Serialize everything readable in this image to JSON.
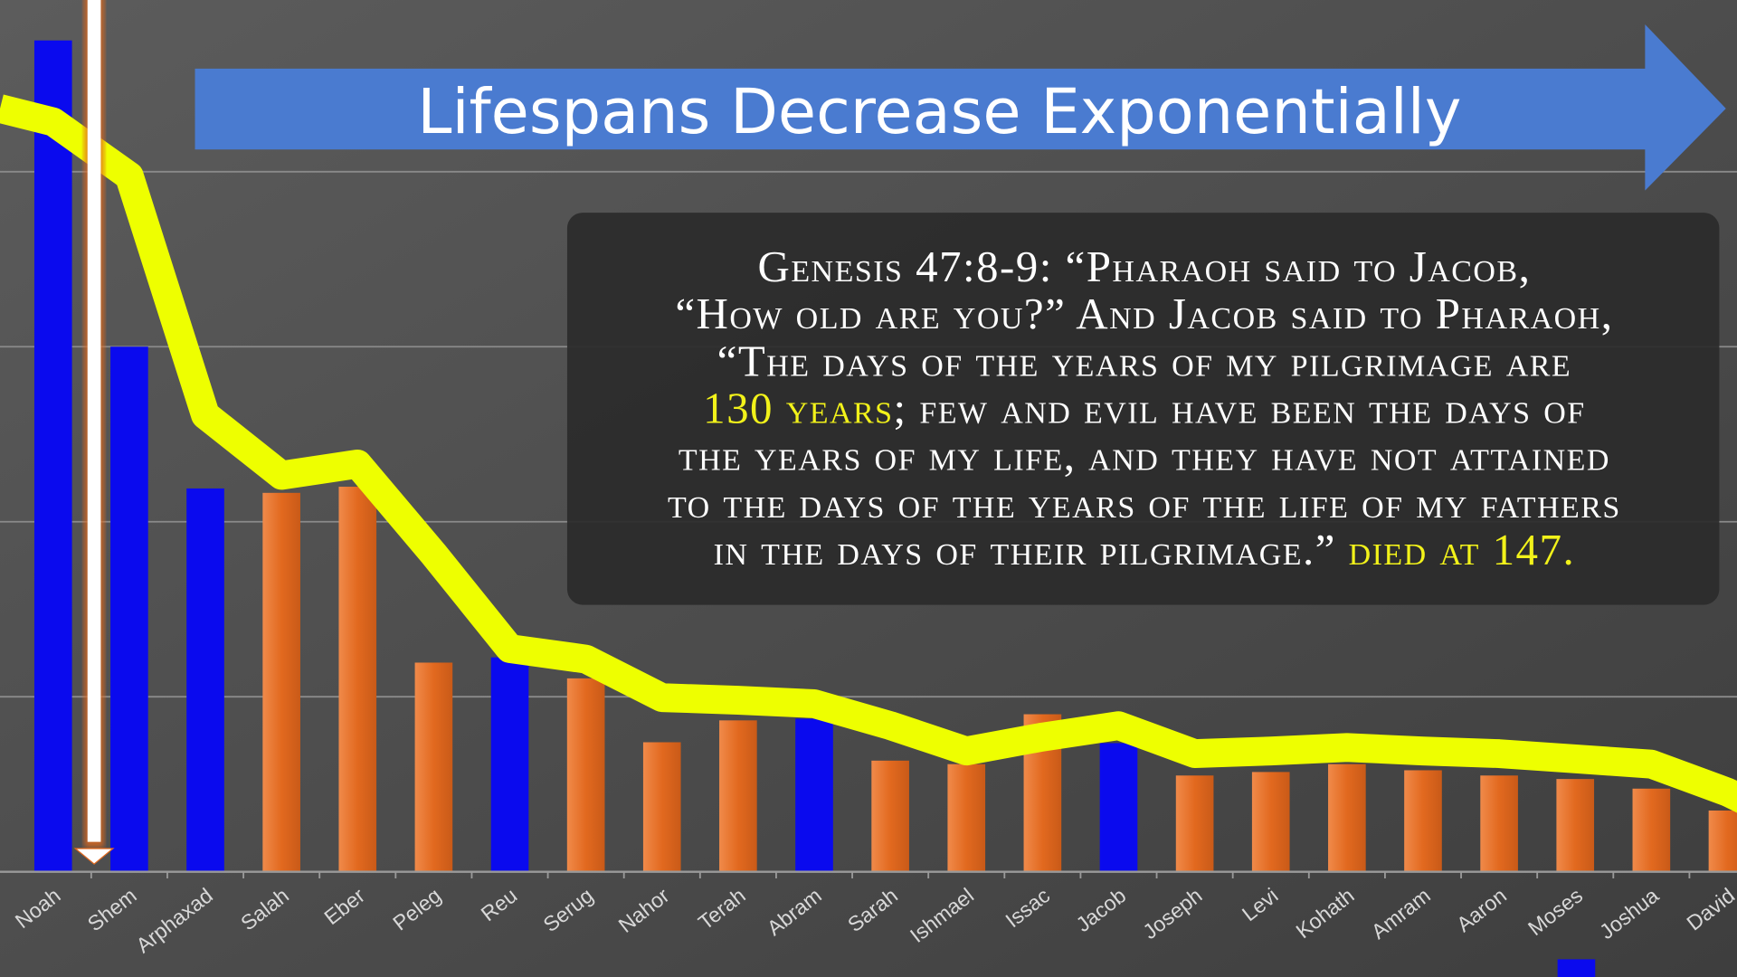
{
  "banner": {
    "title": "Lifespans Decrease Exponentially",
    "color": "#4a7bd0"
  },
  "passage": {
    "lines": [
      [
        {
          "text": "Genesis 47:8-9: “Pharaoh said to Jacob,",
          "highlight": false
        }
      ],
      [
        {
          "text": "“How old are you?” And Jacob said to Pharaoh,",
          "highlight": false
        }
      ],
      [
        {
          "text": "“The days of the years of my pilgrimage are",
          "highlight": false
        }
      ],
      [
        {
          "text": "130 years",
          "highlight": true
        },
        {
          "text": "; few and evil have been the days of",
          "highlight": false
        }
      ],
      [
        {
          "text": "the years of my life, and they have not attained",
          "highlight": false
        }
      ],
      [
        {
          "text": "to the days of the years of the life of my fathers",
          "highlight": false
        }
      ],
      [
        {
          "text": "in the days of their pilgrimage.” ",
          "highlight": false
        },
        {
          "text": "died at 147.",
          "highlight": true
        }
      ]
    ],
    "highlight_color": "#f2f21a"
  },
  "chart_data": {
    "type": "bar",
    "title": "",
    "xlabel": "",
    "ylabel": "",
    "ylim": [
      0,
      1000
    ],
    "grid": true,
    "gridline_step": 200,
    "categories": [
      "Noah",
      "Shem",
      "Arphaxad",
      "Salah",
      "Eber",
      "Peleg",
      "Reu",
      "Serug",
      "Nahor",
      "Terah",
      "Abram",
      "Sarah",
      "Ishmael",
      "Issac",
      "Jacob",
      "Joseph",
      "Levi",
      "Kohath",
      "Amram",
      "Aaron",
      "Moses",
      "Joshua",
      "David"
    ],
    "values": [
      950,
      600,
      438,
      433,
      440,
      239,
      245,
      221,
      148,
      173,
      175,
      127,
      123,
      180,
      147,
      110,
      114,
      123,
      116,
      110,
      106,
      95,
      70
    ],
    "bar_colors": [
      "blue",
      "blue",
      "blue",
      "orange",
      "orange",
      "orange",
      "blue",
      "orange",
      "orange",
      "orange",
      "blue",
      "orange",
      "orange",
      "orange",
      "blue",
      "orange",
      "orange",
      "orange",
      "orange",
      "orange",
      "orange",
      "orange",
      "orange"
    ],
    "trend_line": {
      "type": "line",
      "color": "#eeff00",
      "values": [
        857,
        795,
        522,
        453,
        466,
        363,
        255,
        243,
        199,
        196,
        192,
        167,
        138,
        154,
        167,
        135,
        138,
        142,
        138,
        135,
        129,
        123,
        91
      ]
    },
    "colors": {
      "blue": "#0a0aee",
      "orange": "#e2691f"
    }
  }
}
